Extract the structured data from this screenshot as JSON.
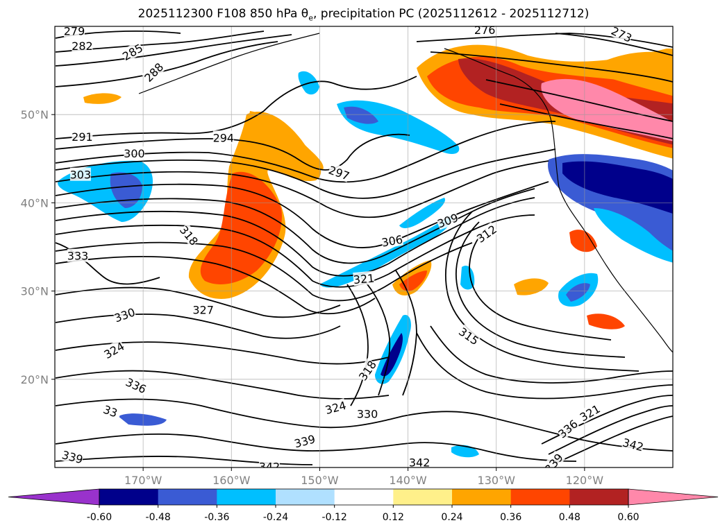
{
  "title": {
    "prefix": "2025112300 F108 850 hPa θ",
    "sub": "e",
    "suffix": ", precipitation PC (2025112612 - 2025112712)"
  },
  "map": {
    "lon_range": [
      -180,
      -110
    ],
    "lat_range": [
      10,
      60
    ],
    "lon_ticks": [
      {
        "lon": -170,
        "label": "170°W"
      },
      {
        "lon": -160,
        "label": "160°W"
      },
      {
        "lon": -150,
        "label": "150°W"
      },
      {
        "lon": -140,
        "label": "140°W"
      },
      {
        "lon": -130,
        "label": "130°W"
      },
      {
        "lon": -120,
        "label": "120°W"
      }
    ],
    "lat_ticks": [
      {
        "lat": 50,
        "label": "50°N"
      },
      {
        "lat": 40,
        "label": "40°N"
      },
      {
        "lat": 30,
        "label": "30°N"
      },
      {
        "lat": 20,
        "label": "20°N"
      }
    ],
    "contour_labels": [
      {
        "text": "279",
        "lon": -177.8,
        "lat": 59.5,
        "rot": 0
      },
      {
        "text": "282",
        "lon": -176.9,
        "lat": 57.8,
        "rot": 0
      },
      {
        "text": "285",
        "lon": -171.2,
        "lat": 57.1,
        "rot": -30
      },
      {
        "text": "288",
        "lon": -168.8,
        "lat": 54.8,
        "rot": -45
      },
      {
        "text": "276",
        "lon": -131.3,
        "lat": 59.6,
        "rot": 0
      },
      {
        "text": "273",
        "lon": -115.8,
        "lat": 59.1,
        "rot": 25
      },
      {
        "text": "291",
        "lon": -176.9,
        "lat": 47.5,
        "rot": 0
      },
      {
        "text": "294",
        "lon": -160.9,
        "lat": 47.4,
        "rot": 0
      },
      {
        "text": "300",
        "lon": -171.0,
        "lat": 45.6,
        "rot": 0
      },
      {
        "text": "303",
        "lon": -177.1,
        "lat": 43.2,
        "rot": 0
      },
      {
        "text": "297",
        "lon": -147.8,
        "lat": 43.4,
        "rot": 20
      },
      {
        "text": "309",
        "lon": -135.5,
        "lat": 38.0,
        "rot": -20
      },
      {
        "text": "312",
        "lon": -131.1,
        "lat": 36.5,
        "rot": -35
      },
      {
        "text": "306",
        "lon": -141.8,
        "lat": 35.7,
        "rot": -10
      },
      {
        "text": "318",
        "lon": -164.8,
        "lat": 36.3,
        "rot": 50
      },
      {
        "text": "333",
        "lon": -177.4,
        "lat": 34.0,
        "rot": 0
      },
      {
        "text": "321",
        "lon": -145.0,
        "lat": 31.4,
        "rot": -5
      },
      {
        "text": "327",
        "lon": -163.2,
        "lat": 27.9,
        "rot": 0
      },
      {
        "text": "330",
        "lon": -172.1,
        "lat": 27.3,
        "rot": -20
      },
      {
        "text": "315",
        "lon": -133.1,
        "lat": 24.9,
        "rot": 35
      },
      {
        "text": "324",
        "lon": -173.3,
        "lat": 23.3,
        "rot": -30
      },
      {
        "text": "318",
        "lon": -144.6,
        "lat": 21.0,
        "rot": -55
      },
      {
        "text": "336",
        "lon": -170.8,
        "lat": 19.3,
        "rot": 25
      },
      {
        "text": "324",
        "lon": -148.2,
        "lat": 16.8,
        "rot": -15
      },
      {
        "text": "330",
        "lon": -144.6,
        "lat": 16.1,
        "rot": 0
      },
      {
        "text": "33",
        "lon": -173.7,
        "lat": 16.4,
        "rot": 20
      },
      {
        "text": "339",
        "lon": -151.7,
        "lat": 13.0,
        "rot": -15
      },
      {
        "text": "321",
        "lon": -119.4,
        "lat": 16.2,
        "rot": -30
      },
      {
        "text": "336",
        "lon": -121.9,
        "lat": 14.4,
        "rot": -40
      },
      {
        "text": "342",
        "lon": -114.5,
        "lat": 12.6,
        "rot": 15
      },
      {
        "text": "339",
        "lon": -178.0,
        "lat": 11.2,
        "rot": 15
      },
      {
        "text": "342",
        "lon": -155.7,
        "lat": 10.1,
        "rot": 0
      },
      {
        "text": "342",
        "lon": -138.7,
        "lat": 10.6,
        "rot": 0
      },
      {
        "text": "339",
        "lon": -123.5,
        "lat": 10.5,
        "rot": -50
      }
    ]
  },
  "colorbar": {
    "levels": [
      "-0.60",
      "-0.48",
      "-0.36",
      "-0.24",
      "-0.12",
      "0.12",
      "0.24",
      "0.36",
      "0.48",
      "0.60"
    ],
    "colors": {
      "under": "#9932cc",
      "bins": [
        "#00008b",
        "#3a5bd4",
        "#00bfff",
        "#b0e0ff",
        "#ffffff",
        "#fff08a",
        "#ffa500",
        "#ff4500",
        "#b22222"
      ],
      "over": "#ff88aa"
    }
  }
}
